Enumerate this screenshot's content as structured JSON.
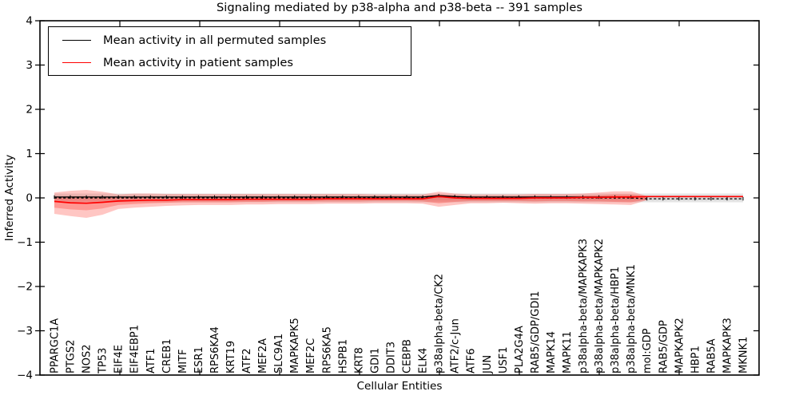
{
  "title": "Signaling mediated by p38-alpha and p38-beta -- 391 samples",
  "axes": {
    "ylabel": "Inferred Activity",
    "xlabel": "Cellular Entities",
    "ytick_labels": [
      "4",
      "3",
      "2",
      "1",
      "0",
      "−1",
      "−2",
      "−3",
      "−4"
    ],
    "ylim": [
      -4,
      4
    ]
  },
  "legend": {
    "items": [
      {
        "label": "Mean activity in all permuted samples",
        "color": "#000000"
      },
      {
        "label": "Mean activity in patient samples",
        "color": "#ff0000"
      }
    ]
  },
  "colors": {
    "permuted_line": "#000000",
    "patient_line": "#ff0000",
    "patient_band": "#ff2d23",
    "permuted_band": "#000000",
    "frame": "#000000"
  },
  "chart_data": {
    "type": "line",
    "title": "Signaling mediated by p38-alpha and p38-beta -- 391 samples",
    "xlabel": "Cellular Entities",
    "ylabel": "Inferred Activity",
    "ylim": [
      -4,
      4
    ],
    "grid": false,
    "legend_position": "upper left",
    "categories": [
      "PPARGC1A",
      "PTGS2",
      "NOS2",
      "TP53",
      "EIF4E",
      "EIF4EBP1",
      "ATF1",
      "CREB1",
      "MITF",
      "ESR1",
      "RPS6KA4",
      "KRT19",
      "ATF2",
      "MEF2A",
      "SLC9A1",
      "MAPKAPK5",
      "MEF2C",
      "RPS6KA5",
      "HSPB1",
      "KRT8",
      "GDI1",
      "DDIT3",
      "CEBPB",
      "ELK4",
      "p38alpha-beta/CK2",
      "ATF2/c-Jun",
      "ATF6",
      "JUN",
      "USF1",
      "PLA2G4A",
      "RAB5/GDP/GDI1",
      "MAPK14",
      "MAPK11",
      "p38alpha-beta/MAPKAPK3",
      "p38alpha-beta/MAPKAPK2",
      "p38alpha-beta/HBP1",
      "p38alpha-beta/MNK1",
      "mol:GDP",
      "RAB5/GDP",
      "MAPKAPK2",
      "HBP1",
      "RAB5A",
      "MAPKAPK3",
      "MKNK1"
    ],
    "series": [
      {
        "name": "Mean activity in all permuted samples",
        "color": "#000000",
        "style": "solid-with-tick-markers-then-dashed",
        "values": [
          0.02,
          0.02,
          0.02,
          0.02,
          0.02,
          0.02,
          0.02,
          0.02,
          0.02,
          0.02,
          0.02,
          0.02,
          0.02,
          0.02,
          0.02,
          0.02,
          0.02,
          0.02,
          0.02,
          0.02,
          0.02,
          0.02,
          0.02,
          0.02,
          0.05,
          0.03,
          0.02,
          0.02,
          0.02,
          0.02,
          0.02,
          0.02,
          0.02,
          0.02,
          0.02,
          0.02,
          0.02,
          -0.02,
          -0.02,
          -0.02,
          -0.02,
          -0.02,
          -0.02,
          -0.02
        ]
      },
      {
        "name": "Mean activity in patient samples",
        "color": "#ff0000",
        "style": "solid",
        "values": [
          -0.08,
          -0.11,
          -0.12,
          -0.1,
          -0.07,
          -0.06,
          -0.05,
          -0.05,
          -0.04,
          -0.04,
          -0.04,
          -0.04,
          -0.03,
          -0.03,
          -0.03,
          -0.03,
          -0.03,
          -0.02,
          -0.02,
          -0.02,
          -0.02,
          -0.02,
          -0.02,
          -0.02,
          0.03,
          0.0,
          -0.01,
          -0.01,
          -0.01,
          -0.01,
          0.0,
          0.0,
          0.0,
          0.01,
          0.01,
          0.02,
          0.02,
          0.03,
          0.03,
          0.03,
          0.03,
          0.03,
          0.03,
          0.03
        ]
      }
    ],
    "bands": {
      "patient_outer_top": [
        0.12,
        0.16,
        0.18,
        0.14,
        0.08,
        0.1,
        0.1,
        0.09,
        0.09,
        0.09,
        0.09,
        0.09,
        0.09,
        0.09,
        0.09,
        0.09,
        0.09,
        0.09,
        0.09,
        0.09,
        0.08,
        0.08,
        0.08,
        0.08,
        0.14,
        0.1,
        0.08,
        0.08,
        0.08,
        0.08,
        0.09,
        0.09,
        0.09,
        0.1,
        0.12,
        0.15,
        0.15,
        0.04
      ],
      "patient_outer_bottom": [
        -0.36,
        -0.41,
        -0.45,
        -0.38,
        -0.25,
        -0.22,
        -0.2,
        -0.18,
        -0.17,
        -0.16,
        -0.16,
        -0.16,
        -0.15,
        -0.15,
        -0.14,
        -0.14,
        -0.14,
        -0.13,
        -0.13,
        -0.13,
        -0.12,
        -0.12,
        -0.12,
        -0.13,
        -0.2,
        -0.16,
        -0.12,
        -0.12,
        -0.11,
        -0.12,
        -0.13,
        -0.12,
        -0.12,
        -0.13,
        -0.14,
        -0.15,
        -0.16,
        -0.05
      ],
      "patient_inner_top": [
        0.02,
        0.03,
        0.03,
        0.02,
        0.01,
        0.02,
        0.03,
        0.02,
        0.03,
        0.03,
        0.03,
        0.03,
        0.03,
        0.03,
        0.03,
        0.03,
        0.03,
        0.03,
        0.03,
        0.03,
        0.03,
        0.03,
        0.03,
        0.03,
        0.08,
        0.05,
        0.03,
        0.03,
        0.03,
        0.03,
        0.04,
        0.04,
        0.04,
        0.05,
        0.06,
        0.08,
        0.08,
        0.035
      ],
      "patient_inner_bottom": [
        -0.22,
        -0.26,
        -0.28,
        -0.24,
        -0.16,
        -0.14,
        -0.12,
        -0.11,
        -0.1,
        -0.1,
        -0.1,
        -0.1,
        -0.09,
        -0.09,
        -0.08,
        -0.08,
        -0.08,
        -0.08,
        -0.08,
        -0.08,
        -0.07,
        -0.07,
        -0.07,
        -0.08,
        -0.12,
        -0.09,
        -0.07,
        -0.07,
        -0.07,
        -0.07,
        -0.08,
        -0.07,
        -0.07,
        -0.08,
        -0.08,
        -0.09,
        -0.1,
        -0.04
      ],
      "permuted_top": 0.1,
      "permuted_bottom": -0.1,
      "permuted_inner_top": 0.05,
      "permuted_inner_bottom": -0.06
    }
  }
}
